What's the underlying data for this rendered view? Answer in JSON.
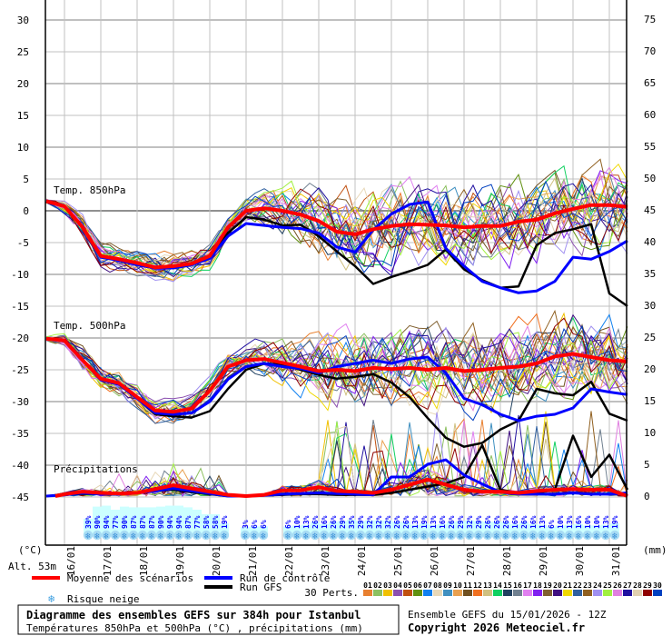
{
  "chart_data": {
    "type": "line",
    "title": "Diagramme des ensembles GEFS sur 384h pour Istanbul",
    "subtitle": "Températures 850hPa et 500hPa (°C) , précipitations (mm)",
    "run_label": "Ensemble GEFS du 15/01/2026 - 12Z",
    "copyright": "Copyright 2026 Meteociel.fr",
    "altitude": "Alt. 53m",
    "left_axis": {
      "unit": "(°C)",
      "range": [
        -45,
        30
      ],
      "ticks": [
        30,
        25,
        20,
        15,
        10,
        5,
        0,
        -5,
        -10,
        -15,
        -20,
        -25,
        -30,
        -35,
        -40,
        -45
      ]
    },
    "right_axis": {
      "unit": "(mm)",
      "range": [
        0,
        75
      ],
      "ticks": [
        75,
        70,
        65,
        60,
        55,
        50,
        45,
        40,
        35,
        30,
        25,
        20,
        15,
        10,
        5,
        0
      ]
    },
    "x_start": "15/01/2026 12Z",
    "x_step_hours": 12,
    "x_tick_labels": [
      "16/01",
      "17/01",
      "18/01",
      "19/01",
      "20/01",
      "21/01",
      "22/01",
      "23/01",
      "24/01",
      "25/01",
      "26/01",
      "27/01",
      "28/01",
      "29/01",
      "30/01",
      "31/01"
    ],
    "grid": true,
    "panel_labels": {
      "t850": "Temp. 850hPa",
      "t500": "Temp. 500hPa",
      "precip": "Précipitations"
    },
    "t850": {
      "mean": [
        1.5,
        0.7,
        -2.6,
        -7.1,
        -7.6,
        -8.2,
        -8.9,
        -8.7,
        -8.3,
        -7.1,
        -2.6,
        0,
        0.4,
        0,
        -0.6,
        -1.6,
        -3.3,
        -3.7,
        -2.9,
        -2.4,
        -2.1,
        -2.2,
        -2.3,
        -2.6,
        -2.4,
        -2.4,
        -1.7,
        -1.4,
        -0.4,
        0.3,
        0.9,
        0.9,
        0.6
      ],
      "control": [
        1.5,
        0.7,
        -2.6,
        -7.3,
        -7.8,
        -8.5,
        -9,
        -9,
        -8.5,
        -7.5,
        -4,
        -2,
        -2.3,
        -2.6,
        -2.8,
        -3.5,
        -5.7,
        -6.5,
        -3,
        -0.5,
        1,
        1.4,
        -5.9,
        -8.7,
        -11.1,
        -12.1,
        -12.9,
        -12.6,
        -11.1,
        -7.3,
        -7.6,
        -6.4,
        -4.7
      ],
      "gfs": [
        1.5,
        0.7,
        -2.6,
        -7.3,
        -7.8,
        -8.5,
        -9,
        -8.8,
        -8.5,
        -7.3,
        -3.5,
        -1,
        -1.4,
        -2.3,
        -2.2,
        -4,
        -6.4,
        -8.7,
        -11.5,
        -10.4,
        -9.5,
        -8.5,
        -6.1,
        -9.2,
        -10.9,
        -12.1,
        -11.9,
        -5.4,
        -3.5,
        -2.9,
        -2.1,
        -13,
        -15
      ]
    },
    "t500": {
      "mean": [
        -20.1,
        -20.4,
        -23.5,
        -26.4,
        -27.1,
        -29.3,
        -31.4,
        -31.6,
        -31.1,
        -28.3,
        -24.5,
        -23.5,
        -23.3,
        -23.9,
        -24.5,
        -25.2,
        -25,
        -25.2,
        -24.7,
        -24.9,
        -24.7,
        -25,
        -24.7,
        -25.2,
        -25,
        -24.7,
        -24.5,
        -24,
        -22.9,
        -22.5,
        -23,
        -23.5,
        -23.7
      ],
      "control": [
        -20.1,
        -20.4,
        -23.5,
        -26.6,
        -27.3,
        -29.5,
        -31.8,
        -32,
        -31.8,
        -30,
        -26.5,
        -24.5,
        -24,
        -24.5,
        -24.8,
        -25.5,
        -24.5,
        -24,
        -23.5,
        -24,
        -23.3,
        -23,
        -25.5,
        -29.5,
        -30.5,
        -32,
        -33,
        -32.3,
        -32,
        -31,
        -28,
        -28.5,
        -28.9
      ],
      "gfs": [
        -20.1,
        -20.4,
        -23.5,
        -26.6,
        -27.3,
        -29.5,
        -32,
        -32.3,
        -32.5,
        -31.5,
        -28,
        -25,
        -24,
        -24.2,
        -25,
        -25.8,
        -26.4,
        -26.1,
        -25.7,
        -27,
        -29.3,
        -32.6,
        -35.7,
        -37.1,
        -36.5,
        -34.4,
        -33,
        -28,
        -28.7,
        -29,
        -26.9,
        -31.9,
        -33
      ]
    },
    "precip": {
      "mean": [
        0,
        0.3,
        0.7,
        0.5,
        0.4,
        0.5,
        1.1,
        1.7,
        1.2,
        0.7,
        0.2,
        0,
        0.2,
        0.9,
        0.9,
        1.4,
        0.8,
        0.7,
        0.5,
        1,
        1.8,
        2.6,
        1.8,
        1,
        0.7,
        0.7,
        0.5,
        0.8,
        1,
        1.1,
        1,
        1,
        0
      ],
      "control": [
        0,
        0.2,
        0.5,
        0.3,
        0.3,
        0.5,
        0.8,
        1.2,
        0.8,
        0.4,
        0,
        0,
        0.1,
        0.3,
        0.4,
        0.5,
        0.4,
        0.3,
        0.2,
        3,
        3,
        5,
        5.7,
        3.3,
        1.9,
        0.6,
        0.3,
        0.3,
        0.3,
        0.5,
        0.3,
        0.3,
        0.5
      ],
      "gfs": [
        0,
        0.2,
        0.4,
        0.3,
        0.3,
        0.5,
        0.8,
        1,
        0.6,
        0.3,
        0,
        0,
        0.1,
        0.2,
        0.3,
        0.3,
        0.2,
        0.2,
        0.2,
        0.5,
        1,
        1.5,
        2,
        3,
        8,
        1,
        0.5,
        0.5,
        1,
        9.5,
        3,
        6.5,
        1
      ]
    },
    "snow_risk": {
      "groups": [
        {
          "values": [
            "39%",
            "90%",
            "94%",
            "77%",
            "90%",
            "87%",
            "87%",
            "87%",
            "90%",
            "94%",
            "94%",
            "87%",
            "77%",
            "58%",
            "58%",
            "19%"
          ]
        },
        {
          "values": [
            "3%",
            "6%",
            "6%"
          ]
        },
        {
          "values": [
            "6%",
            "10%",
            "13%",
            "26%",
            "16%",
            "26%",
            "29%",
            "35%",
            "29%",
            "32%",
            "32%",
            "32%",
            "26%",
            "26%",
            "13%",
            "19%",
            "13%",
            "16%",
            "26%",
            "29%",
            "32%",
            "29%",
            "26%",
            "26%",
            "26%",
            "16%",
            "26%",
            "16%",
            "13%",
            "6%",
            "10%",
            "13%",
            "16%",
            "10%",
            "10%",
            "13%",
            "19%"
          ]
        }
      ],
      "color": "#0000ff",
      "band_color": "#ccffff",
      "icon": "snowflake-icon"
    },
    "legend": {
      "mean": {
        "label": "Moyenne des scénarios",
        "color": "#ff0000"
      },
      "control": {
        "label": "Run de contrôle",
        "color": "#0000ff"
      },
      "gfs": {
        "label": "Run GFS",
        "color": "#000000"
      },
      "snow": {
        "label": "Risque neige",
        "icon": "snowflake-icon"
      },
      "perts_label": "30 Perts.",
      "members": [
        "01",
        "02",
        "03",
        "04",
        "05",
        "06",
        "07",
        "08",
        "09",
        "10",
        "11",
        "12",
        "13",
        "14",
        "15",
        "16",
        "17",
        "18",
        "19",
        "20",
        "21",
        "22",
        "23",
        "24",
        "25",
        "26",
        "27",
        "28",
        "29",
        "30"
      ],
      "member_colors": [
        "#e88030",
        "#8cc060",
        "#f0c000",
        "#8c50b0",
        "#c05010",
        "#609010",
        "#1080f0",
        "#e8d8b8",
        "#4090c0",
        "#e8a050",
        "#705020",
        "#f07020",
        "#d0c080",
        "#10d060",
        "#204060",
        "#708090",
        "#e080f0",
        "#8020f0",
        "#806030",
        "#401080",
        "#f0d800",
        "#3060a0",
        "#906020",
        "#a090f0",
        "#a0f040",
        "#e080e0",
        "#2010a0",
        "#e0d0b0",
        "#900000",
        "#0040c0"
      ]
    }
  }
}
